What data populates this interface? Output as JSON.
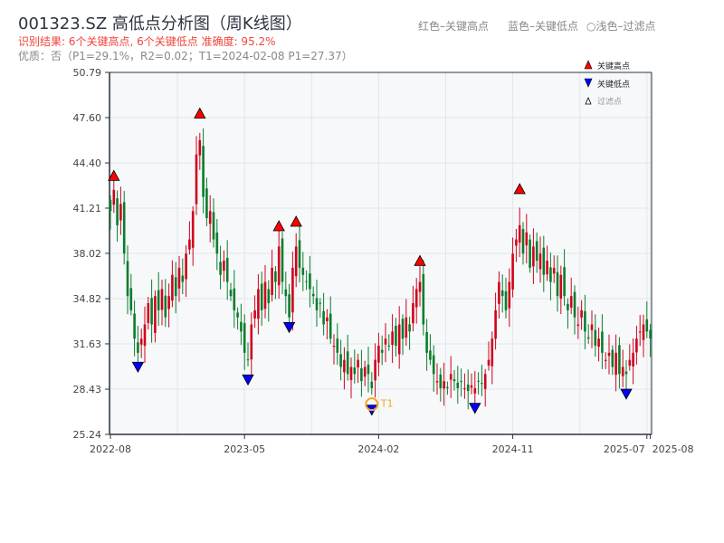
{
  "header": {
    "title": "001323.SZ 高低点分析图（周K线图）",
    "result": "识别结果: 6个关键高点, 6个关键低点  准确度: 95.2%",
    "quality": "优质：否（P1=29.1%，R2=0.02；T1=2024-02-08 P1=27.37）"
  },
  "top_legend": {
    "red": "红色–关键高点",
    "blue": "蓝色–关键低点",
    "light": "○浅色–过滤点"
  },
  "chart_data": {
    "type": "candlestick",
    "title": "001323.SZ 高低点分析图（周K线图）",
    "ylim": [
      25.24,
      50.79
    ],
    "yticks": [
      "25.24",
      "28.43",
      "31.63",
      "34.82",
      "38.02",
      "41.21",
      "44.40",
      "47.60",
      "50.79"
    ],
    "xticks": [
      {
        "label": "2022-08",
        "i": 0
      },
      {
        "label": "2023-05",
        "i": 39
      },
      {
        "label": "2024-02",
        "i": 78
      },
      {
        "label": "2024-11",
        "i": 117
      },
      {
        "label": "2025-07",
        "i": 156
      },
      {
        "label": "2025-08",
        "i": 157
      }
    ],
    "closes": [
      41,
      42.5,
      40,
      41.5,
      38,
      35,
      34,
      32,
      31,
      32,
      33,
      34.5,
      33,
      35,
      34,
      35.5,
      33.5,
      35,
      36.5,
      35,
      37,
      36,
      38,
      39,
      41,
      45,
      46,
      42,
      40.5,
      41,
      39,
      38,
      36.5,
      37.5,
      36,
      35,
      34,
      33.5,
      32.5,
      31,
      30.5,
      33,
      34,
      35.5,
      34,
      36,
      34.5,
      37,
      36,
      38.5,
      36,
      35,
      33.5,
      37,
      38.5,
      37,
      36.5,
      36,
      35.5,
      35,
      34,
      34.5,
      33,
      33.5,
      32,
      31.5,
      31,
      30,
      30.5,
      29.5,
      30,
      29.5,
      30.5,
      29,
      30,
      29.5,
      28.5,
      30.5,
      31.5,
      31,
      32,
      31.5,
      32.5,
      31.5,
      33,
      32,
      33.5,
      32.5,
      34.5,
      35.5,
      36,
      33,
      31,
      30.5,
      29.5,
      29,
      28.5,
      29,
      28.5,
      29.5,
      29,
      28.5,
      29,
      28.5,
      28.3,
      28.7,
      28.5,
      29,
      28.8,
      29.5,
      30.5,
      32,
      34,
      36,
      35,
      34,
      36,
      38,
      39,
      40,
      38,
      39.5,
      37,
      38.5,
      37.5,
      38,
      36.5,
      37.5,
      36,
      37,
      35,
      36.5,
      35,
      34,
      35,
      33.5,
      33,
      34,
      32.5,
      32,
      33,
      31.5,
      32,
      31,
      30.5,
      31,
      30,
      31,
      29.5,
      30,
      29.5,
      30.5,
      31,
      32,
      32.5,
      33,
      32.5,
      32
    ],
    "key_highs": [
      {
        "i": 1,
        "price": 43.1
      },
      {
        "i": 26,
        "price": 47.5
      },
      {
        "i": 49,
        "price": 39.55
      },
      {
        "i": 54,
        "price": 39.87
      },
      {
        "i": 90,
        "price": 37.1
      },
      {
        "i": 119,
        "price": 42.17
      }
    ],
    "key_lows": [
      {
        "i": 8,
        "price": 30.4
      },
      {
        "i": 40,
        "price": 29.5
      },
      {
        "i": 52,
        "price": 33.2
      },
      {
        "i": 76,
        "price": 27.37
      },
      {
        "i": 106,
        "price": 27.5
      },
      {
        "i": 150,
        "price": 28.5
      }
    ],
    "t1": {
      "i": 76,
      "price": 27.37,
      "label": "T1"
    },
    "legend": [
      {
        "label": "关键高点"
      },
      {
        "label": "关键低点"
      },
      {
        "label": "过滤点"
      }
    ],
    "colors": {
      "up": "#d0021b",
      "down": "#0a7d2c",
      "high": "#ff0000",
      "low": "#0000ff",
      "t1": "#f5a623"
    }
  }
}
